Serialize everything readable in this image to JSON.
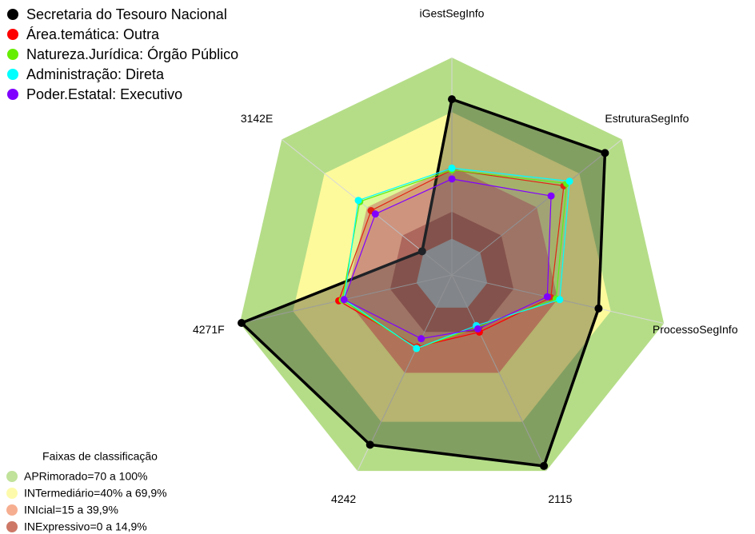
{
  "chart_data": {
    "type": "radar",
    "categories": [
      "iGestSegInfo",
      "EstruturaSegInfo",
      "ProcessoSegInfo",
      "2115",
      "4242",
      "4271F",
      "3142E"
    ],
    "rlim": [
      -20,
      100
    ],
    "series": [
      {
        "name": "Secretaria do Tesouro Nacional",
        "color": "#000000",
        "values": [
          77,
          88,
          63,
          97,
          84,
          99,
          1
        ]
      },
      {
        "name": "Área.temática: Outra",
        "color": "#ff0000",
        "values": [
          38,
          59,
          36,
          15,
          24,
          44,
          37
        ]
      },
      {
        "name": "Natureza.Jurídica: Órgão Público",
        "color": "#66ee00",
        "values": [
          38,
          61,
          39,
          12,
          25,
          42,
          45
        ]
      },
      {
        "name": "Administração: Direta",
        "color": "#00ffff",
        "values": [
          39,
          63,
          41,
          11,
          25,
          41,
          46
        ]
      },
      {
        "name": "Poder.Estatal: Executivo",
        "color": "#8000ff",
        "values": [
          33,
          50,
          34,
          13,
          19,
          41,
          34
        ]
      }
    ],
    "bands_title": "Faixas de classificação",
    "bands": [
      {
        "label": "APRimorado=70 a 100%",
        "max": 100,
        "color": "#b5dd88"
      },
      {
        "label": "INTermediário=40% a 69,9%",
        "max": 69.9,
        "color": "#fdfa9c"
      },
      {
        "label": "INIcial=15 a 39,9%",
        "max": 39.9,
        "color": "#f4a07c"
      },
      {
        "label": "INExpressivo=0 a 14,9%",
        "max": 14.9,
        "color": "#c4604c"
      }
    ]
  }
}
